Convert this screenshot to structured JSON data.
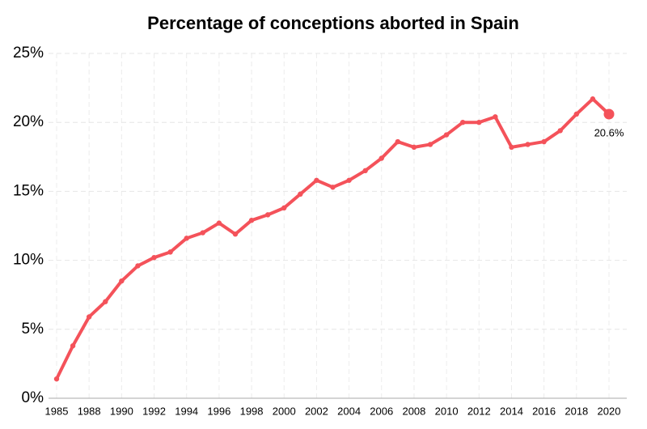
{
  "chart_data": {
    "type": "line",
    "title": "Percentage of conceptions aborted in Spain",
    "categories": [
      1985,
      null,
      1988,
      null,
      1990,
      null,
      1992,
      null,
      1994,
      null,
      1996,
      null,
      1998,
      null,
      2000,
      null,
      2002,
      null,
      2004,
      null,
      2006,
      null,
      2008,
      null,
      2010,
      null,
      2012,
      null,
      2014,
      null,
      2016,
      null,
      2018,
      null,
      2020
    ],
    "values": [
      1.4,
      3.8,
      5.9,
      7.0,
      8.5,
      9.6,
      10.2,
      10.6,
      11.6,
      12.0,
      12.7,
      11.9,
      12.9,
      13.3,
      13.8,
      14.8,
      15.8,
      15.3,
      15.8,
      16.5,
      17.4,
      18.6,
      18.2,
      18.4,
      19.1,
      20.0,
      20.0,
      20.4,
      18.2,
      18.4,
      18.6,
      19.4,
      20.6,
      21.7,
      20.6
    ],
    "value_labels": [
      null,
      null,
      null,
      null,
      null,
      null,
      null,
      null,
      null,
      null,
      null,
      null,
      null,
      null,
      null,
      null,
      null,
      null,
      null,
      null,
      null,
      null,
      null,
      null,
      null,
      null,
      null,
      null,
      null,
      null,
      null,
      null,
      null,
      null,
      "20.6%"
    ],
    "color": "#f4525a",
    "ylim": [
      0,
      25
    ],
    "yticks": [
      {
        "value": 0,
        "label": "0%"
      },
      {
        "value": 5,
        "label": "5%"
      },
      {
        "value": 10,
        "label": "10%"
      },
      {
        "value": 15,
        "label": "15%"
      },
      {
        "value": 20,
        "label": "20%"
      },
      {
        "value": 25,
        "label": "25%"
      }
    ],
    "grid": true
  }
}
